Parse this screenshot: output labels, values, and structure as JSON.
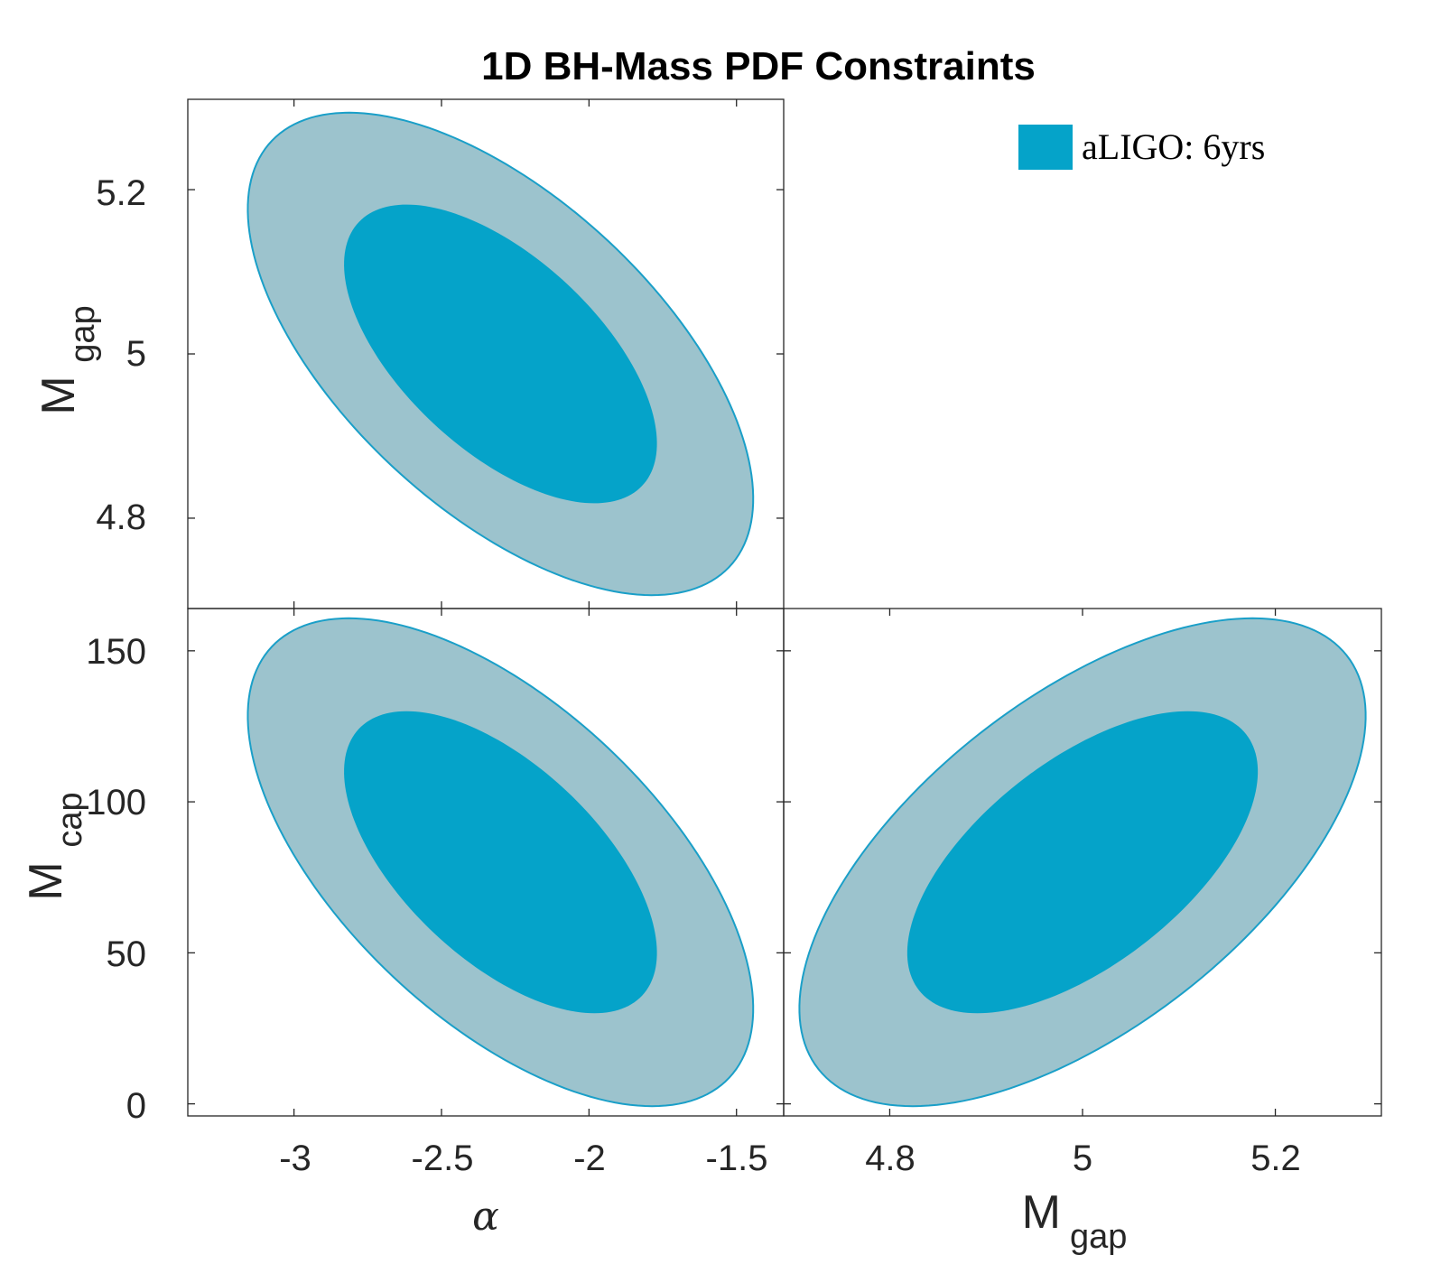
{
  "title": "1D BH-Mass PDF Constraints",
  "legend": {
    "label": "aLIGO: 6yrs",
    "color": "#05a3c9"
  },
  "colors": {
    "inner": "#05a3c9",
    "outer": "#9cc3cd",
    "edge": "#1a9fc8"
  },
  "chart_data": [
    {
      "type": "contour",
      "panel": "top-left",
      "x_param": "alpha",
      "y_param": "M_gap",
      "xlim": [
        -3.36,
        -1.34
      ],
      "ylim": [
        4.69,
        5.31
      ],
      "xticks": [
        -3,
        -2.5,
        -2,
        -1.5
      ],
      "yticks": [
        4.8,
        5,
        5.2
      ],
      "ytick_labels": [
        "4.8",
        "5",
        "5.2"
      ],
      "ylabel": "M",
      "ylabel_sub": "gap",
      "center": [
        -2.3,
        5.0
      ],
      "sigma": [
        0.35,
        0.12
      ],
      "rho": -0.6,
      "levels": [
        1,
        2
      ]
    },
    {
      "type": "contour",
      "panel": "bottom-left",
      "x_param": "alpha",
      "y_param": "M_cap",
      "xlim": [
        -3.36,
        -1.34
      ],
      "ylim": [
        -4,
        164
      ],
      "xticks": [
        -3,
        -2.5,
        -2,
        -1.5
      ],
      "xtick_labels": [
        "-3",
        "-2.5",
        "-2",
        "-1.5"
      ],
      "yticks": [
        0,
        50,
        100,
        150
      ],
      "ytick_labels": [
        "0",
        "50",
        "100",
        "150"
      ],
      "xlabel": "α",
      "ylabel": "M",
      "ylabel_sub": "cap",
      "center": [
        -2.3,
        80
      ],
      "sigma": [
        0.35,
        33
      ],
      "rho": -0.6,
      "levels": [
        1,
        2
      ]
    },
    {
      "type": "contour",
      "panel": "bottom-right",
      "x_param": "M_gap",
      "y_param": "M_cap",
      "xlim": [
        4.69,
        5.31
      ],
      "ylim": [
        -4,
        164
      ],
      "xticks": [
        4.8,
        5,
        5.2
      ],
      "xtick_labels": [
        "4.8",
        "5",
        "5.2"
      ],
      "yticks": [
        0,
        50,
        100,
        150
      ],
      "xlabel": "M",
      "xlabel_sub": "gap",
      "center": [
        5.0,
        80
      ],
      "sigma": [
        0.12,
        33
      ],
      "rho": 0.6,
      "levels": [
        1,
        2
      ]
    }
  ]
}
